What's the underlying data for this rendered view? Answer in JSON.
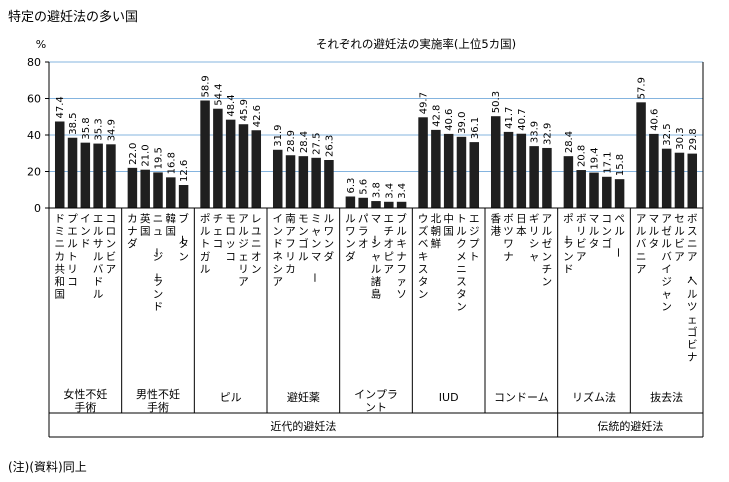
{
  "page_title": "特定の避妊法の多い国",
  "footnote": "(注)(資料)同上",
  "chart_data": {
    "type": "bar",
    "title": "それぞれの避妊法の実施率(上位5カ国)",
    "y_unit": "%",
    "ylim": [
      0,
      80
    ],
    "yticks": [
      0,
      20,
      40,
      60,
      80
    ],
    "grid": true,
    "grid_color": "#5b9bd5",
    "bar_color": "#1f1f1f",
    "groups": [
      {
        "label": "女性不妊手術",
        "countries": [
          "ドミニカ共和国",
          "プエルトリコ",
          "インド",
          "エルサルバドル",
          "コロンビア"
        ],
        "values": [
          47.4,
          38.5,
          35.8,
          35.3,
          34.9
        ]
      },
      {
        "label": "男性不妊手術",
        "countries": [
          "カナダ",
          "英国",
          "ニュージーランド",
          "韓国",
          "ブータン"
        ],
        "values": [
          22.0,
          21.0,
          19.5,
          16.8,
          12.6
        ]
      },
      {
        "label": "ピル",
        "countries": [
          "ポルトガル",
          "チェコ",
          "モロッコ",
          "アルジェリア",
          "レユニオン"
        ],
        "values": [
          58.9,
          54.4,
          48.4,
          45.9,
          42.6
        ]
      },
      {
        "label": "避妊薬",
        "countries": [
          "インドネシア",
          "南アフリカ",
          "モンゴル",
          "ミャンマー",
          "ルワンダ"
        ],
        "values": [
          31.9,
          28.9,
          28.4,
          27.5,
          26.3
        ]
      },
      {
        "label": "インプラント",
        "countries": [
          "ルワンダ",
          "パラオ",
          "マーシャル諸島",
          "エチオピア",
          "ブルキナファソ"
        ],
        "values": [
          6.3,
          5.6,
          3.8,
          3.4,
          3.4
        ]
      },
      {
        "label": "IUD",
        "countries": [
          "ウズベキスタン",
          "北朝鮮",
          "中国",
          "トルクメニスタン",
          "エジプト"
        ],
        "values": [
          49.7,
          42.8,
          40.6,
          39.0,
          36.1
        ]
      },
      {
        "label": "コンドーム",
        "countries": [
          "香港",
          "ボツワナ",
          "日本",
          "ギリシャ",
          "アルゼンチン"
        ],
        "values": [
          50.3,
          41.7,
          40.7,
          33.9,
          32.9
        ]
      },
      {
        "label": "リズム法",
        "countries": [
          "ポーランド",
          "ボリビア",
          "マルタ",
          "コンゴ",
          "ペルー"
        ],
        "values": [
          28.4,
          20.8,
          19.4,
          17.1,
          15.8
        ]
      },
      {
        "label": "抜去法",
        "countries": [
          "アルバニア",
          "マルタ",
          "アゼルバイジャン",
          "セルビア",
          "ボスニア・ヘルツェゴビナ"
        ],
        "values": [
          57.9,
          40.6,
          32.5,
          30.3,
          29.8
        ]
      }
    ],
    "categories": [
      {
        "label": "近代的避妊法",
        "group_count": 7
      },
      {
        "label": "伝統的避妊法",
        "group_count": 2
      }
    ]
  }
}
